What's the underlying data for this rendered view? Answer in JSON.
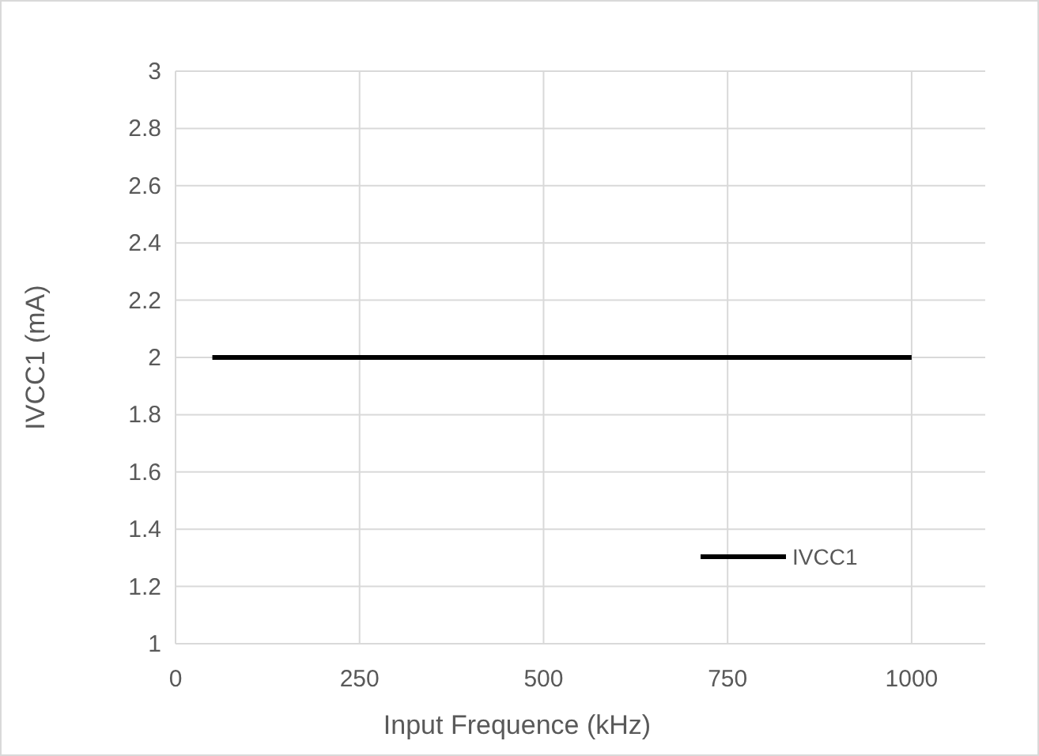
{
  "chart_data": {
    "type": "line",
    "xlabel": "Input Frequence (kHz)",
    "ylabel": "IVCC1 (mA)",
    "x": [
      50,
      1000
    ],
    "series": [
      {
        "name": "IVCC1",
        "color": "#000000",
        "values": [
          2,
          2
        ]
      }
    ],
    "xlim": [
      0,
      1100
    ],
    "xticks": [
      0,
      250,
      500,
      750,
      1000
    ],
    "ylim": [
      1,
      3
    ],
    "yticks": [
      1,
      1.2,
      1.4,
      1.6,
      1.8,
      2,
      2.2,
      2.4,
      2.6,
      2.8,
      3
    ],
    "grid": true,
    "legend": "bottom right",
    "marker": "none",
    "line_style": "solid"
  }
}
